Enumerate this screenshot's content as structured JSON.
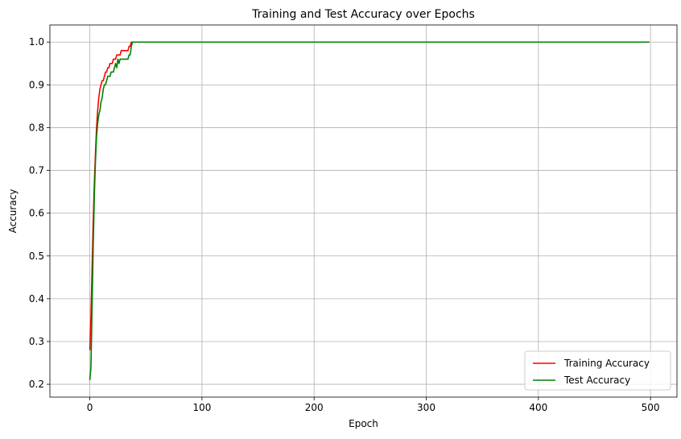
{
  "chart_data": {
    "type": "line",
    "title": "Training and Test Accuracy over Epochs",
    "xlabel": "Epoch",
    "ylabel": "Accuracy",
    "xlim": [
      -35.6,
      523.6
    ],
    "ylim": [
      0.17,
      1.04
    ],
    "xticks": [
      0,
      100,
      200,
      300,
      400,
      500
    ],
    "xtick_labels": [
      "0",
      "100",
      "200",
      "300",
      "400",
      "500"
    ],
    "yticks": [
      0.2,
      0.3,
      0.4,
      0.5,
      0.6,
      0.7,
      0.8,
      0.9,
      1.0
    ],
    "ytick_labels": [
      "0.2",
      "0.3",
      "0.4",
      "0.5",
      "0.6",
      "0.7",
      "0.8",
      "0.9",
      "1.0"
    ],
    "grid": true,
    "legend_position": "lower-right",
    "series": [
      {
        "name": "Training Accuracy",
        "color": "#ff0000",
        "x": [
          0,
          1,
          2,
          3,
          4,
          5,
          6,
          7,
          8,
          9,
          10,
          11,
          12,
          13,
          14,
          15,
          16,
          17,
          18,
          19,
          20,
          21,
          22,
          23,
          24,
          25,
          26,
          27,
          28,
          29,
          30,
          31,
          32,
          33,
          34,
          35,
          36,
          37,
          38,
          39,
          40,
          499
        ],
        "y": [
          0.28,
          0.36,
          0.47,
          0.58,
          0.67,
          0.74,
          0.8,
          0.84,
          0.87,
          0.89,
          0.9,
          0.91,
          0.91,
          0.92,
          0.93,
          0.93,
          0.94,
          0.94,
          0.95,
          0.95,
          0.95,
          0.96,
          0.96,
          0.96,
          0.97,
          0.97,
          0.97,
          0.97,
          0.98,
          0.98,
          0.98,
          0.98,
          0.98,
          0.98,
          0.98,
          0.99,
          0.99,
          1.0,
          1.0,
          1.0,
          1.0,
          1.0
        ]
      },
      {
        "name": "Test Accuracy",
        "color": "#008000",
        "x": [
          0,
          1,
          2,
          3,
          4,
          5,
          6,
          7,
          8,
          9,
          10,
          11,
          12,
          13,
          14,
          15,
          16,
          17,
          18,
          19,
          20,
          21,
          22,
          23,
          24,
          25,
          26,
          27,
          28,
          29,
          30,
          31,
          32,
          33,
          34,
          35,
          36,
          37,
          38,
          39,
          40,
          499
        ],
        "y": [
          0.21,
          0.24,
          0.38,
          0.52,
          0.64,
          0.72,
          0.78,
          0.81,
          0.83,
          0.84,
          0.86,
          0.87,
          0.89,
          0.9,
          0.9,
          0.91,
          0.92,
          0.92,
          0.92,
          0.93,
          0.93,
          0.93,
          0.94,
          0.95,
          0.94,
          0.96,
          0.95,
          0.96,
          0.96,
          0.96,
          0.96,
          0.96,
          0.96,
          0.96,
          0.96,
          0.97,
          0.97,
          0.99,
          1.0,
          1.0,
          1.0,
          1.0
        ]
      }
    ]
  }
}
